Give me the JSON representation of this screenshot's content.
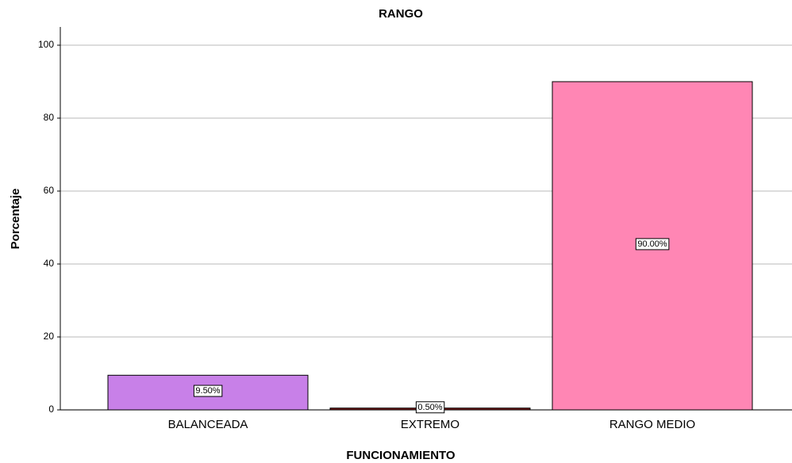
{
  "chart_data": {
    "type": "bar",
    "title": "RANGO",
    "x_label": "FUNCIONAMIENTO",
    "y_label": "Porcentaje",
    "categories": [
      "BALANCEADA",
      "EXTREMO",
      "RANGO MEDIO"
    ],
    "values": [
      9.5,
      0.5,
      90.0
    ],
    "value_labels": [
      "9.50%",
      "0.50%",
      "90.00%"
    ],
    "colors": [
      "#c880e8",
      "#7a1a1a",
      "#ff86b4"
    ],
    "ylim": [
      0,
      105
    ],
    "yticks": [
      0,
      20,
      40,
      60,
      80,
      100
    ],
    "grid": true
  }
}
